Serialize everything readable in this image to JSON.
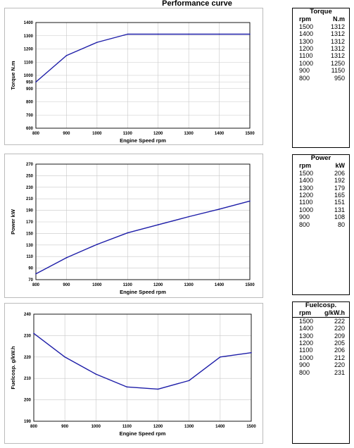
{
  "page": {
    "title": "Performance curve"
  },
  "chart_data": [
    {
      "id": "torque",
      "type": "line",
      "xlabel": "Engine Speed rpm",
      "ylabel": "Torque N.m",
      "x": [
        800,
        900,
        1000,
        1100,
        1200,
        1300,
        1400,
        1500
      ],
      "y": [
        950,
        1150,
        1250,
        1312,
        1312,
        1312,
        1312,
        1312
      ],
      "xlim": [
        800,
        1500
      ],
      "ylim": [
        600,
        1400
      ],
      "xticks": [
        "800",
        "900",
        "1000",
        "1100",
        "1200",
        "1300",
        "1400",
        "1500"
      ],
      "yticks": [
        "600",
        "700",
        "800",
        "900",
        "950",
        "1000",
        "1100",
        "1200",
        "1300",
        "1400"
      ],
      "grid": true,
      "line_color": "#1d1da8"
    },
    {
      "id": "power",
      "type": "line",
      "xlabel": "Engine Speed rpm",
      "ylabel": "Power kW",
      "x": [
        800,
        900,
        1000,
        1100,
        1200,
        1300,
        1400,
        1500
      ],
      "y": [
        80,
        108,
        131,
        151,
        165,
        179,
        192,
        206
      ],
      "xlim": [
        800,
        1500
      ],
      "ylim": [
        70,
        270
      ],
      "xticks": [
        "800",
        "900",
        "1000",
        "1100",
        "1200",
        "1300",
        "1400",
        "1500"
      ],
      "yticks": [
        "70",
        "90",
        "110",
        "130",
        "150",
        "170",
        "190",
        "210",
        "230",
        "250",
        "270"
      ],
      "grid": true,
      "line_color": "#1d1da8"
    },
    {
      "id": "fuel",
      "type": "line",
      "xlabel": "Engine Speed rpm",
      "ylabel": "Fuelcosp. g/kW.h",
      "x": [
        800,
        900,
        1000,
        1100,
        1200,
        1300,
        1400,
        1500
      ],
      "y": [
        231,
        220,
        212,
        206,
        205,
        209,
        220,
        222
      ],
      "xlim": [
        800,
        1500
      ],
      "ylim": [
        190,
        240
      ],
      "xticks": [
        "800",
        "900",
        "1000",
        "1100",
        "1200",
        "1300",
        "1400",
        "1500"
      ],
      "yticks": [
        "190",
        "200",
        "210",
        "220",
        "230",
        "240"
      ],
      "grid": true,
      "line_color": "#1d1da8"
    }
  ],
  "tables": [
    {
      "title": "Torque",
      "headers": [
        "rpm",
        "N.m"
      ],
      "rows": [
        [
          "1500",
          "1312"
        ],
        [
          "1400",
          "1312"
        ],
        [
          "1300",
          "1312"
        ],
        [
          "1200",
          "1312"
        ],
        [
          "1100",
          "1312"
        ],
        [
          "1000",
          "1250"
        ],
        [
          "900",
          "1150"
        ],
        [
          "800",
          "950"
        ]
      ]
    },
    {
      "title": "Power",
      "headers": [
        "rpm",
        "kW"
      ],
      "rows": [
        [
          "1500",
          "206"
        ],
        [
          "1400",
          "192"
        ],
        [
          "1300",
          "179"
        ],
        [
          "1200",
          "165"
        ],
        [
          "1100",
          "151"
        ],
        [
          "1000",
          "131"
        ],
        [
          "900",
          "108"
        ],
        [
          "800",
          "80"
        ]
      ]
    },
    {
      "title": "Fuelcosp.",
      "headers": [
        "rpm",
        "g/kW.h"
      ],
      "rows": [
        [
          "1500",
          "222"
        ],
        [
          "1400",
          "220"
        ],
        [
          "1300",
          "209"
        ],
        [
          "1200",
          "205"
        ],
        [
          "1100",
          "206"
        ],
        [
          "1000",
          "212"
        ],
        [
          "900",
          "220"
        ],
        [
          "800",
          "231"
        ]
      ]
    }
  ]
}
